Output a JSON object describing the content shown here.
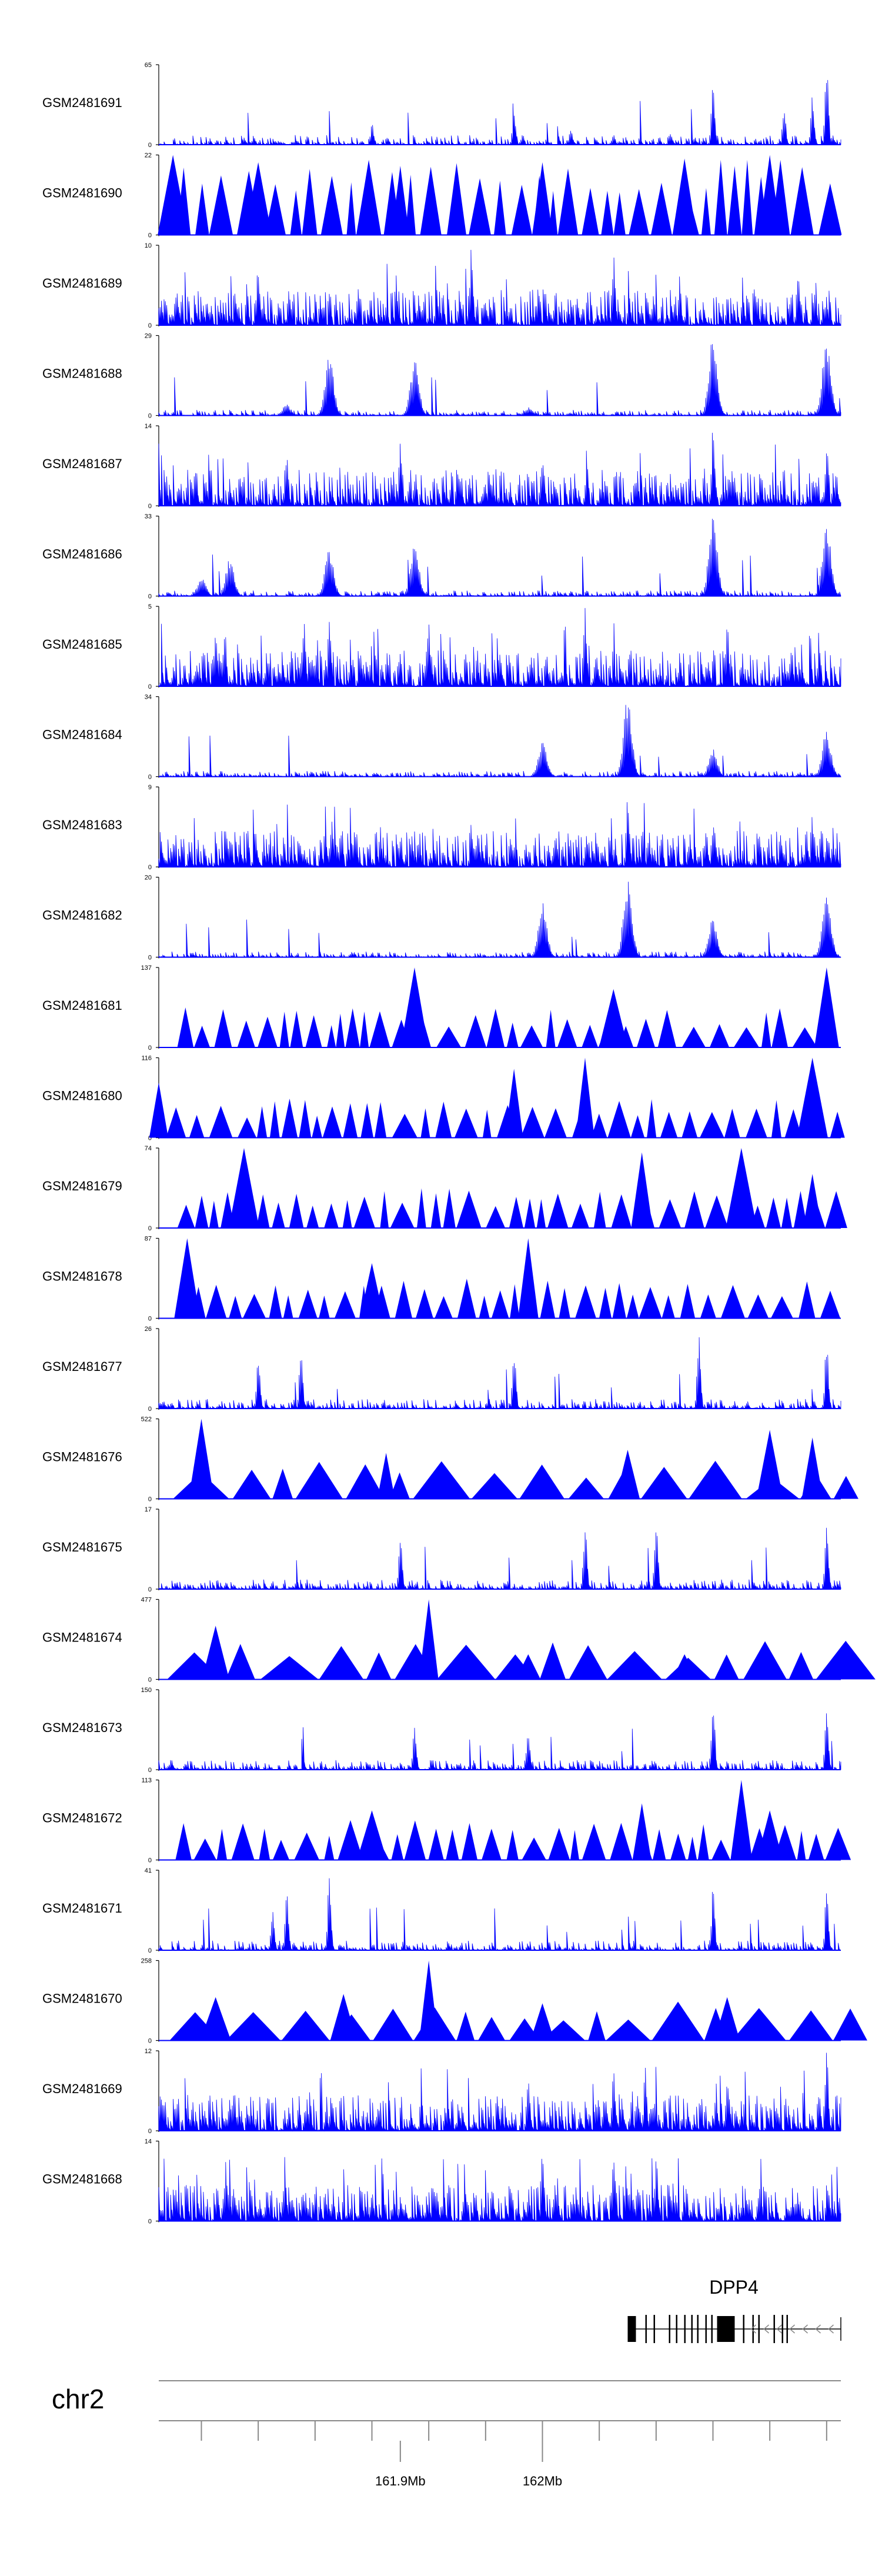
{
  "chart_data": {
    "type": "genome-browser-coverage",
    "chromosome": "chr2",
    "x_unit": "Mb",
    "xlim": [
      161.73,
      162.21
    ],
    "x_ticks": [
      161.76,
      161.8,
      161.84,
      161.88,
      161.92,
      161.96,
      162.0,
      162.04,
      162.08,
      162.12,
      162.16,
      162.2
    ],
    "x_tick_labels": [
      {
        "x": 161.9,
        "label": "161.9Mb"
      },
      {
        "x": 162.0,
        "label": "162Mb"
      }
    ],
    "gene": {
      "name": "DPP4",
      "start": 162.06,
      "end": 162.21,
      "strand": "-"
    },
    "tracks": [
      {
        "name": "GSM2481691",
        "ymax": 65,
        "ymin": 0,
        "style": "spiky",
        "peaks": [
          [
            161.79,
            6
          ],
          [
            161.88,
            18
          ],
          [
            161.98,
            28
          ],
          [
            162.02,
            14
          ],
          [
            162.05,
            8
          ],
          [
            162.09,
            12
          ],
          [
            162.12,
            50
          ],
          [
            162.17,
            30
          ],
          [
            162.19,
            40
          ],
          [
            162.2,
            65
          ]
        ]
      },
      {
        "name": "GSM2481690",
        "ymax": 22,
        "ymin": 0,
        "style": "triangles",
        "peaks": [
          [
            161.74,
            22
          ],
          [
            161.8,
            20
          ],
          [
            161.9,
            19
          ],
          [
            162.0,
            20
          ],
          [
            162.1,
            21
          ],
          [
            162.16,
            22
          ]
        ]
      },
      {
        "name": "GSM2481689",
        "ymax": 10,
        "ymin": 0,
        "style": "dense",
        "peaks": [
          [
            161.8,
            8
          ],
          [
            161.95,
            10
          ],
          [
            162.05,
            9
          ],
          [
            162.18,
            8
          ]
        ]
      },
      {
        "name": "GSM2481688",
        "ymax": 29,
        "ymin": 0,
        "style": "peaks",
        "peaks": [
          [
            161.82,
            4
          ],
          [
            161.85,
            22
          ],
          [
            161.91,
            20
          ],
          [
            161.99,
            3
          ],
          [
            162.12,
            29
          ],
          [
            162.2,
            28
          ]
        ]
      },
      {
        "name": "GSM2481687",
        "ymax": 14,
        "ymin": 0,
        "style": "dense",
        "peaks": [
          [
            161.82,
            9
          ],
          [
            161.9,
            12
          ],
          [
            162.0,
            10
          ],
          [
            162.12,
            14
          ],
          [
            162.2,
            11
          ]
        ]
      },
      {
        "name": "GSM2481686",
        "ymax": 33,
        "ymin": 0,
        "style": "peaks",
        "peaks": [
          [
            161.76,
            8
          ],
          [
            161.78,
            16
          ],
          [
            161.85,
            20
          ],
          [
            161.91,
            22
          ],
          [
            162.12,
            33
          ],
          [
            162.2,
            30
          ]
        ]
      },
      {
        "name": "GSM2481685",
        "ymax": 5,
        "ymin": 0,
        "style": "dense",
        "peaks": [
          [
            161.77,
            4
          ],
          [
            161.85,
            5
          ],
          [
            161.92,
            4
          ],
          [
            162.03,
            5
          ],
          [
            162.13,
            4
          ]
        ]
      },
      {
        "name": "GSM2481684",
        "ymax": 34,
        "ymin": 0,
        "style": "peaks",
        "peaks": [
          [
            162.0,
            15
          ],
          [
            162.06,
            34
          ],
          [
            162.12,
            12
          ],
          [
            162.2,
            20
          ]
        ]
      },
      {
        "name": "GSM2481683",
        "ymax": 9,
        "ymin": 0,
        "style": "dense",
        "peaks": [
          [
            161.95,
            5
          ],
          [
            162.06,
            9
          ],
          [
            162.12,
            5
          ],
          [
            162.19,
            6
          ]
        ]
      },
      {
        "name": "GSM2481682",
        "ymax": 20,
        "ymin": 0,
        "style": "peaks",
        "peaks": [
          [
            162.0,
            14
          ],
          [
            162.06,
            20
          ],
          [
            162.12,
            10
          ],
          [
            162.2,
            16
          ]
        ]
      },
      {
        "name": "GSM2481681",
        "ymax": 137,
        "ymin": 0,
        "style": "triangles",
        "peaks": [
          [
            161.91,
            137
          ],
          [
            162.05,
            100
          ],
          [
            162.2,
            137
          ]
        ]
      },
      {
        "name": "GSM2481680",
        "ymax": 116,
        "ymin": 0,
        "style": "triangles",
        "peaks": [
          [
            161.73,
            80
          ],
          [
            161.98,
            100
          ],
          [
            162.03,
            116
          ],
          [
            162.19,
            116
          ]
        ]
      },
      {
        "name": "GSM2481679",
        "ymax": 74,
        "ymin": 0,
        "style": "triangles",
        "peaks": [
          [
            161.79,
            74
          ],
          [
            162.07,
            70
          ],
          [
            162.14,
            74
          ],
          [
            162.19,
            50
          ]
        ]
      },
      {
        "name": "GSM2481678",
        "ymax": 87,
        "ymin": 0,
        "style": "triangles",
        "peaks": [
          [
            161.75,
            87
          ],
          [
            161.99,
            87
          ],
          [
            161.88,
            60
          ]
        ]
      },
      {
        "name": "GSM2481677",
        "ymax": 26,
        "ymin": 0,
        "style": "spiky",
        "peaks": [
          [
            161.8,
            18
          ],
          [
            161.83,
            20
          ],
          [
            161.98,
            21
          ],
          [
            162.11,
            26
          ],
          [
            162.2,
            24
          ]
        ]
      },
      {
        "name": "GSM2481676",
        "ymax": 522,
        "ymin": 0,
        "style": "triangles",
        "peaks": [
          [
            161.76,
            522
          ],
          [
            161.89,
            300
          ],
          [
            162.06,
            320
          ],
          [
            162.16,
            450
          ],
          [
            162.19,
            400
          ]
        ]
      },
      {
        "name": "GSM2481675",
        "ymax": 17,
        "ymin": 0,
        "style": "spiky",
        "peaks": [
          [
            161.9,
            12
          ],
          [
            162.03,
            15
          ],
          [
            162.08,
            17
          ],
          [
            162.2,
            16
          ]
        ]
      },
      {
        "name": "GSM2481674",
        "ymax": 477,
        "ymin": 0,
        "style": "triangles",
        "peaks": [
          [
            161.77,
            320
          ],
          [
            161.92,
            477
          ],
          [
            161.99,
            150
          ],
          [
            162.1,
            150
          ]
        ]
      },
      {
        "name": "GSM2481673",
        "ymax": 150,
        "ymin": 0,
        "style": "spiky",
        "peaks": [
          [
            161.91,
            80
          ],
          [
            161.99,
            75
          ],
          [
            162.12,
            150
          ],
          [
            162.2,
            120
          ]
        ]
      },
      {
        "name": "GSM2481672",
        "ymax": 113,
        "ymin": 0,
        "style": "triangles",
        "peaks": [
          [
            161.88,
            70
          ],
          [
            162.07,
            80
          ],
          [
            162.14,
            113
          ],
          [
            162.16,
            70
          ]
        ]
      },
      {
        "name": "GSM2481671",
        "ymax": 41,
        "ymin": 0,
        "style": "spiky",
        "peaks": [
          [
            161.81,
            22
          ],
          [
            161.82,
            30
          ],
          [
            161.85,
            41
          ],
          [
            162.12,
            34
          ],
          [
            162.2,
            33
          ]
        ]
      },
      {
        "name": "GSM2481670",
        "ymax": 258,
        "ymin": 0,
        "style": "triangles",
        "peaks": [
          [
            161.77,
            140
          ],
          [
            161.86,
            150
          ],
          [
            161.92,
            258
          ],
          [
            162.0,
            120
          ],
          [
            162.13,
            140
          ]
        ]
      },
      {
        "name": "GSM2481669",
        "ymax": 12,
        "ymin": 0,
        "style": "dense",
        "peaks": [
          [
            161.99,
            9
          ],
          [
            162.05,
            10
          ],
          [
            162.13,
            8
          ],
          [
            162.2,
            12
          ]
        ]
      },
      {
        "name": "GSM2481668",
        "ymax": 14,
        "ymin": 0,
        "style": "dense",
        "peaks": [
          [
            162.0,
            14
          ],
          [
            162.05,
            12
          ],
          [
            162.08,
            10
          ]
        ]
      }
    ]
  },
  "colors": {
    "track_fill": "#0000ff",
    "axis": "#000000",
    "gene_feature": "#000000",
    "ruler": "#888888"
  }
}
